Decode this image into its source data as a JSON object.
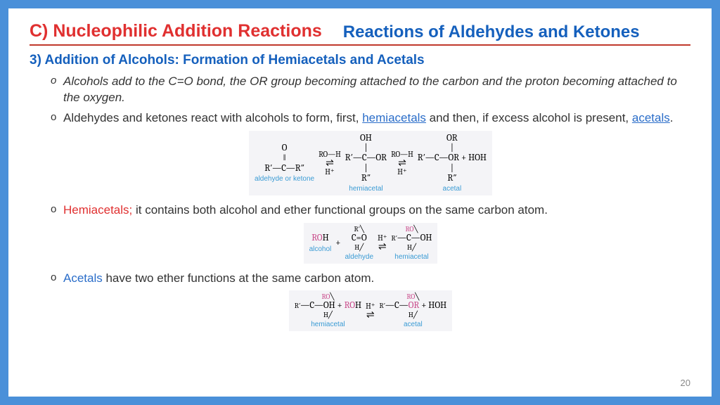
{
  "header": {
    "left": "C) Nucleophilic Addition Reactions",
    "right": "Reactions of Aldehydes and Ketones"
  },
  "subtitle": "3) Addition of Alcohols: Formation of Hemiacetals and Acetals",
  "bullets": {
    "b1": "Alcohols add to the C=O bond, the OR group becoming attached to the carbon and the proton becoming attached to the oxygen.",
    "b2a": "Aldehydes and ketones react with alcohols to form, first, ",
    "b2_link1": "hemiacetals",
    "b2b": " and then, if excess alcohol is present, ",
    "b2_link2": "acetals",
    "b2c": ".",
    "b3_term": "Hemiacetals;",
    "b3_rest": " it contains both alcohol and ether functional groups on the same carbon atom.",
    "b4_term": "Acetals",
    "b4_rest": " have two ether functions at the same carbon atom."
  },
  "scheme1": {
    "mol1_top": "O",
    "mol1_mid": "‖",
    "mol1_main": "R′—C—R″",
    "mol1_label": "aldehyde or ketone",
    "arr_top": "RO—H",
    "arr_sym": "⇌",
    "arr_bot": "H⁺",
    "mol2_top": "OH",
    "mol2_mid": "|",
    "mol2_main": "R′—C—OR",
    "mol2_bot": "|",
    "mol2_bot2": "R″",
    "mol2_label": "hemiacetal",
    "mol3_top": "OR",
    "mol3_mid": "|",
    "mol3_main": "R′—C—OR  +  HOH",
    "mol3_bot": "|",
    "mol3_bot2": "R″",
    "mol3_label": "acetal"
  },
  "scheme2": {
    "lhs_roh": "ROH",
    "plus": " + ",
    "ald_top": "R′",
    "ald_main": "C=O",
    "ald_bot": "H",
    "arr_top": "H⁺",
    "arr_sym": "⇌",
    "prod_top": "RO",
    "prod_main": "C—OH",
    "prod_left": "R′",
    "prod_bot": "H",
    "label1": "alcohol",
    "label2": "aldehyde",
    "label3": "hemiacetal"
  },
  "scheme3": {
    "mol1_top": "RO",
    "mol1_main": "C—OH + ROH",
    "mol1_left": "R′",
    "mol1_bot": "H",
    "arr_top": "H⁺",
    "arr_sym": "⇌",
    "mol2_top": "RO",
    "mol2_main": "C—OR + HOH",
    "mol2_left": "R′",
    "mol2_bot": "H",
    "label1": "hemiacetal",
    "label2": "acetal"
  },
  "page": "20",
  "colors": {
    "frame": "#4a90d9",
    "title_red": "#e03030",
    "title_blue": "#1560bd",
    "rule": "#c0392b",
    "link": "#2a6dc9",
    "label_cyan": "#3a9bd4",
    "ro_pink": "#c94a8a"
  }
}
